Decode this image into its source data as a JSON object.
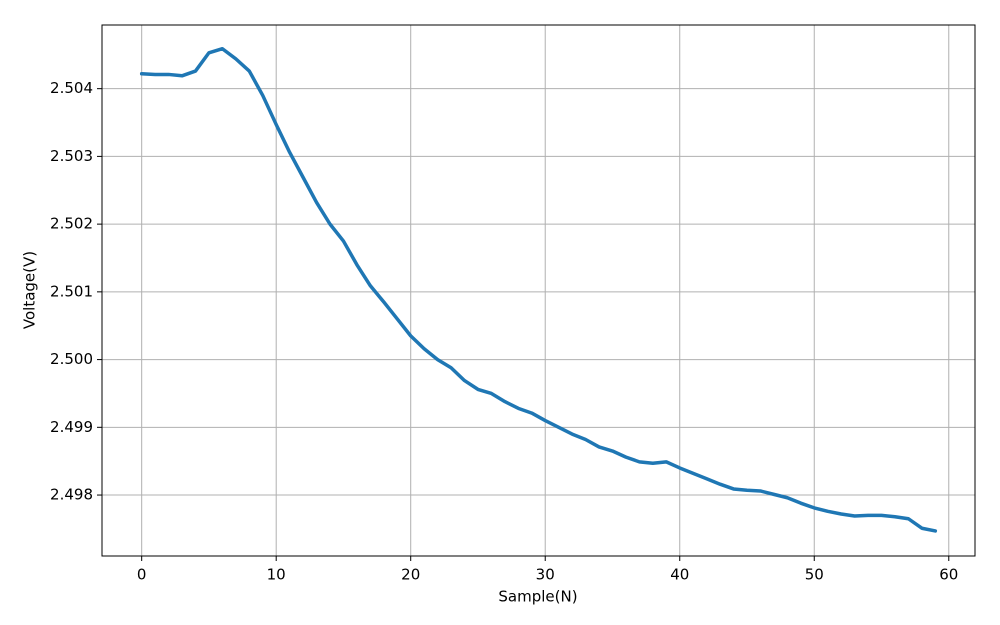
{
  "chart_data": {
    "type": "line",
    "x_label": "Sample(N)",
    "y_label": "Voltage(V)",
    "x": [
      0,
      1,
      2,
      3,
      4,
      5,
      6,
      7,
      8,
      9,
      10,
      11,
      12,
      13,
      14,
      15,
      16,
      17,
      18,
      19,
      20,
      21,
      22,
      23,
      24,
      25,
      26,
      27,
      28,
      29,
      30,
      31,
      32,
      33,
      34,
      35,
      36,
      37,
      38,
      39,
      40,
      41,
      42,
      43,
      44,
      45,
      46,
      47,
      48,
      49,
      50,
      51,
      52,
      53,
      54,
      55,
      56,
      57,
      58,
      59
    ],
    "series": [
      {
        "name": "Voltage",
        "color": "#1f77b4",
        "values": [
          2.50422,
          2.50421,
          2.50421,
          2.50419,
          2.50426,
          2.50453,
          2.50459,
          2.50444,
          2.50426,
          2.5039,
          2.50347,
          2.50306,
          2.50269,
          2.50232,
          2.502,
          2.50175,
          2.5014,
          2.50109,
          2.50085,
          2.5006,
          2.50035,
          2.50016,
          2.5,
          2.49988,
          2.49969,
          2.49956,
          2.4995,
          2.49938,
          2.49928,
          2.49921,
          2.4991,
          2.499,
          2.4989,
          2.49882,
          2.49871,
          2.49865,
          2.49856,
          2.49849,
          2.49847,
          2.49849,
          2.4984,
          2.49832,
          2.49824,
          2.49816,
          2.49809,
          2.49807,
          2.49806,
          2.49801,
          2.49796,
          2.49788,
          2.49781,
          2.49776,
          2.49772,
          2.49769,
          2.4977,
          2.4977,
          2.49768,
          2.49765,
          2.49751,
          2.49747
        ]
      }
    ],
    "xlim": [
      -2.95,
      61.95
    ],
    "xticks": [
      0,
      10,
      20,
      30,
      40,
      50,
      60
    ],
    "ylim": [
      2.4971,
      2.50494
    ],
    "yticks": [
      2.498,
      2.499,
      {
        "value": 2.5,
        "label": "2.500"
      },
      2.501,
      2.502,
      2.503,
      2.504
    ],
    "grid": true
  }
}
